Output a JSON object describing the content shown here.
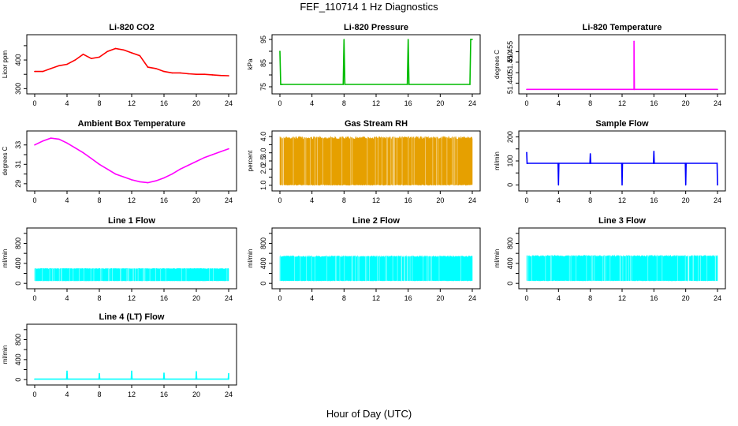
{
  "figure": {
    "title": "FEF_110714  1 Hz Diagnostics",
    "xlabel": "Hour of Day (UTC)"
  },
  "chart_data": [
    {
      "id": "li820-co2",
      "type": "line",
      "title": "Li-820 CO2",
      "ylabel": "Licor ppm",
      "color": "#ff0000",
      "xlim": [
        0,
        24
      ],
      "ylim": [
        290,
        480
      ],
      "xticks": [
        0,
        4,
        8,
        12,
        16,
        20,
        24
      ],
      "yticks": [
        300,
        350,
        400,
        450
      ],
      "ytick_labels": [
        "300",
        "",
        "400",
        ""
      ],
      "series": [
        {
          "x": [
            0,
            1,
            2,
            3,
            4,
            5,
            6,
            7,
            8,
            9,
            10,
            11,
            12,
            13,
            14,
            15,
            16,
            17,
            18,
            19,
            20,
            21,
            22,
            23,
            24
          ],
          "y": [
            360,
            360,
            370,
            380,
            385,
            400,
            420,
            405,
            410,
            430,
            440,
            435,
            425,
            415,
            375,
            370,
            360,
            355,
            355,
            352,
            350,
            350,
            348,
            346,
            345
          ]
        }
      ]
    },
    {
      "id": "li820-pressure",
      "type": "line",
      "title": "Li-820 Pressure",
      "ylabel": "kPa",
      "color": "#00bb00",
      "xlim": [
        0,
        24
      ],
      "ylim": [
        73,
        96
      ],
      "xticks": [
        0,
        4,
        8,
        12,
        16,
        20,
        24
      ],
      "yticks": [
        75,
        80,
        85,
        90,
        95
      ],
      "ytick_labels": [
        "75",
        "",
        "85",
        "",
        "95"
      ],
      "series": [
        {
          "x": [
            0,
            0.1,
            0.2,
            0.3,
            7.9,
            8.0,
            8.1,
            15.9,
            16.0,
            16.1,
            23.7,
            23.8,
            24
          ],
          "y": [
            90,
            76,
            76,
            76,
            76,
            95,
            76,
            76,
            95,
            76,
            76,
            95,
            95
          ]
        }
      ]
    },
    {
      "id": "li820-temperature",
      "type": "line",
      "title": "Li-820 Temperature",
      "ylabel": "degrees C",
      "color": "#ff00ff",
      "xlim": [
        0,
        24
      ],
      "ylim": [
        51.436,
        51.462
      ],
      "xticks": [
        0,
        4,
        8,
        12,
        16,
        20,
        24
      ],
      "yticks": [
        51.44,
        51.445,
        51.45,
        51.455
      ],
      "ytick_labels": [
        "51.440",
        "",
        "51.450",
        "51.455"
      ],
      "series": [
        {
          "x": [
            0,
            13.5,
            13.5,
            13.55,
            24
          ],
          "y": [
            51.437,
            51.437,
            51.46,
            51.437,
            51.437
          ]
        }
      ]
    },
    {
      "id": "ambient-box-temperature",
      "type": "line",
      "title": "Ambient Box Temperature",
      "ylabel": "degrees C",
      "color": "#ff00ff",
      "xlim": [
        0,
        24
      ],
      "ylim": [
        28.5,
        34.2
      ],
      "xticks": [
        0,
        4,
        8,
        12,
        16,
        20,
        24
      ],
      "yticks": [
        29,
        30,
        31,
        32,
        33
      ],
      "ytick_labels": [
        "29",
        "",
        "31",
        "",
        "33"
      ],
      "series": [
        {
          "x": [
            0,
            1,
            2,
            3,
            4,
            5,
            6,
            7,
            8,
            9,
            10,
            11,
            12,
            13,
            14,
            15,
            16,
            17,
            18,
            19,
            20,
            21,
            22,
            23,
            24
          ],
          "y": [
            33.0,
            33.4,
            33.7,
            33.6,
            33.2,
            32.7,
            32.2,
            31.6,
            31.0,
            30.5,
            30.0,
            29.7,
            29.4,
            29.2,
            29.1,
            29.3,
            29.6,
            30.0,
            30.5,
            30.9,
            31.3,
            31.7,
            32.0,
            32.3,
            32.6
          ]
        }
      ]
    },
    {
      "id": "gas-stream-rh",
      "type": "area",
      "title": "Gas Stream RH",
      "ylabel": "percent",
      "color": "#e6a000",
      "xlim": [
        0,
        24
      ],
      "ylim": [
        0.8,
        4.2
      ],
      "xticks": [
        0,
        4,
        8,
        12,
        16,
        20,
        24
      ],
      "yticks": [
        1,
        1.5,
        2,
        2.5,
        3,
        3.5,
        4
      ],
      "ytick_labels": [
        "1.0",
        "",
        "2.0",
        "2.5",
        "3.0",
        "",
        "4.0"
      ],
      "series": [
        {
          "x": [
            0,
            24
          ],
          "y_min": [
            1.0,
            1.0
          ],
          "y_max": [
            4.0,
            4.0
          ]
        }
      ]
    },
    {
      "id": "sample-flow",
      "type": "line",
      "title": "Sample Flow",
      "ylabel": "ml/min",
      "color": "#0000ff",
      "xlim": [
        0,
        24
      ],
      "ylim": [
        -15,
        215
      ],
      "xticks": [
        0,
        4,
        8,
        12,
        16,
        20,
        24
      ],
      "yticks": [
        0,
        50,
        100,
        150,
        200
      ],
      "ytick_labels": [
        "0",
        "",
        "100",
        "",
        "200"
      ],
      "series": [
        {
          "x": [
            0,
            0.05,
            0.1,
            3.95,
            4.0,
            4.05,
            7.95,
            8.0,
            8.05,
            11.95,
            12.0,
            12.05,
            15.95,
            16.0,
            16.05,
            19.95,
            20.0,
            20.05,
            23.95,
            24
          ],
          "y": [
            135,
            90,
            90,
            90,
            0,
            90,
            90,
            130,
            90,
            90,
            0,
            90,
            90,
            140,
            90,
            90,
            0,
            90,
            90,
            0
          ]
        }
      ]
    },
    {
      "id": "line1-flow",
      "type": "area",
      "title": "Line 1 Flow",
      "ylabel": "ml/min",
      "color": "#00ffff",
      "xlim": [
        0,
        24
      ],
      "ylim": [
        -60,
        1060
      ],
      "xticks": [
        0,
        4,
        8,
        12,
        16,
        20,
        24
      ],
      "yticks": [
        0,
        200,
        400,
        600,
        800,
        1000
      ],
      "ytick_labels": [
        "0",
        "",
        "400",
        "",
        "800",
        ""
      ],
      "series": [
        {
          "x": [
            0,
            24
          ],
          "y_min": [
            50,
            50
          ],
          "y_max": [
            300,
            300
          ]
        }
      ]
    },
    {
      "id": "line2-flow",
      "type": "area",
      "title": "Line 2 Flow",
      "ylabel": "ml/min",
      "color": "#00ffff",
      "xlim": [
        0,
        24
      ],
      "ylim": [
        -60,
        1060
      ],
      "xticks": [
        0,
        4,
        8,
        12,
        16,
        20,
        24
      ],
      "yticks": [
        0,
        200,
        400,
        600,
        800,
        1000
      ],
      "ytick_labels": [
        "0",
        "",
        "400",
        "",
        "800",
        ""
      ],
      "series": [
        {
          "x": [
            0,
            24
          ],
          "y_min": [
            50,
            50
          ],
          "y_max": [
            550,
            550
          ]
        }
      ]
    },
    {
      "id": "line3-flow",
      "type": "area",
      "title": "Line 3 Flow",
      "ylabel": "ml/min",
      "color": "#00ffff",
      "xlim": [
        0,
        24
      ],
      "ylim": [
        -60,
        1060
      ],
      "xticks": [
        0,
        4,
        8,
        12,
        16,
        20,
        24
      ],
      "yticks": [
        0,
        200,
        400,
        600,
        800,
        1000
      ],
      "ytick_labels": [
        "0",
        "",
        "400",
        "",
        "800",
        ""
      ],
      "series": [
        {
          "x": [
            0,
            24
          ],
          "y_min": [
            50,
            50
          ],
          "y_max": [
            560,
            560
          ]
        }
      ]
    },
    {
      "id": "line4-lt-flow",
      "type": "line",
      "title": "Line 4 (LT) Flow",
      "ylabel": "ml/min",
      "color": "#00ffff",
      "xlim": [
        0,
        24
      ],
      "ylim": [
        -60,
        1060
      ],
      "xticks": [
        0,
        4,
        8,
        12,
        16,
        20,
        24
      ],
      "yticks": [
        0,
        200,
        400,
        600,
        800,
        1000
      ],
      "ytick_labels": [
        "0",
        "",
        "400",
        "",
        "800",
        ""
      ],
      "series": [
        {
          "x": [
            0,
            3.95,
            4.0,
            4.05,
            7.95,
            8.0,
            8.05,
            11.95,
            12.0,
            12.05,
            15.95,
            16.0,
            16.05,
            19.95,
            20.0,
            20.05,
            23.95,
            24.0,
            24
          ],
          "y": [
            10,
            10,
            170,
            10,
            10,
            120,
            10,
            10,
            170,
            10,
            10,
            130,
            10,
            10,
            160,
            10,
            10,
            120,
            10
          ]
        }
      ]
    }
  ]
}
